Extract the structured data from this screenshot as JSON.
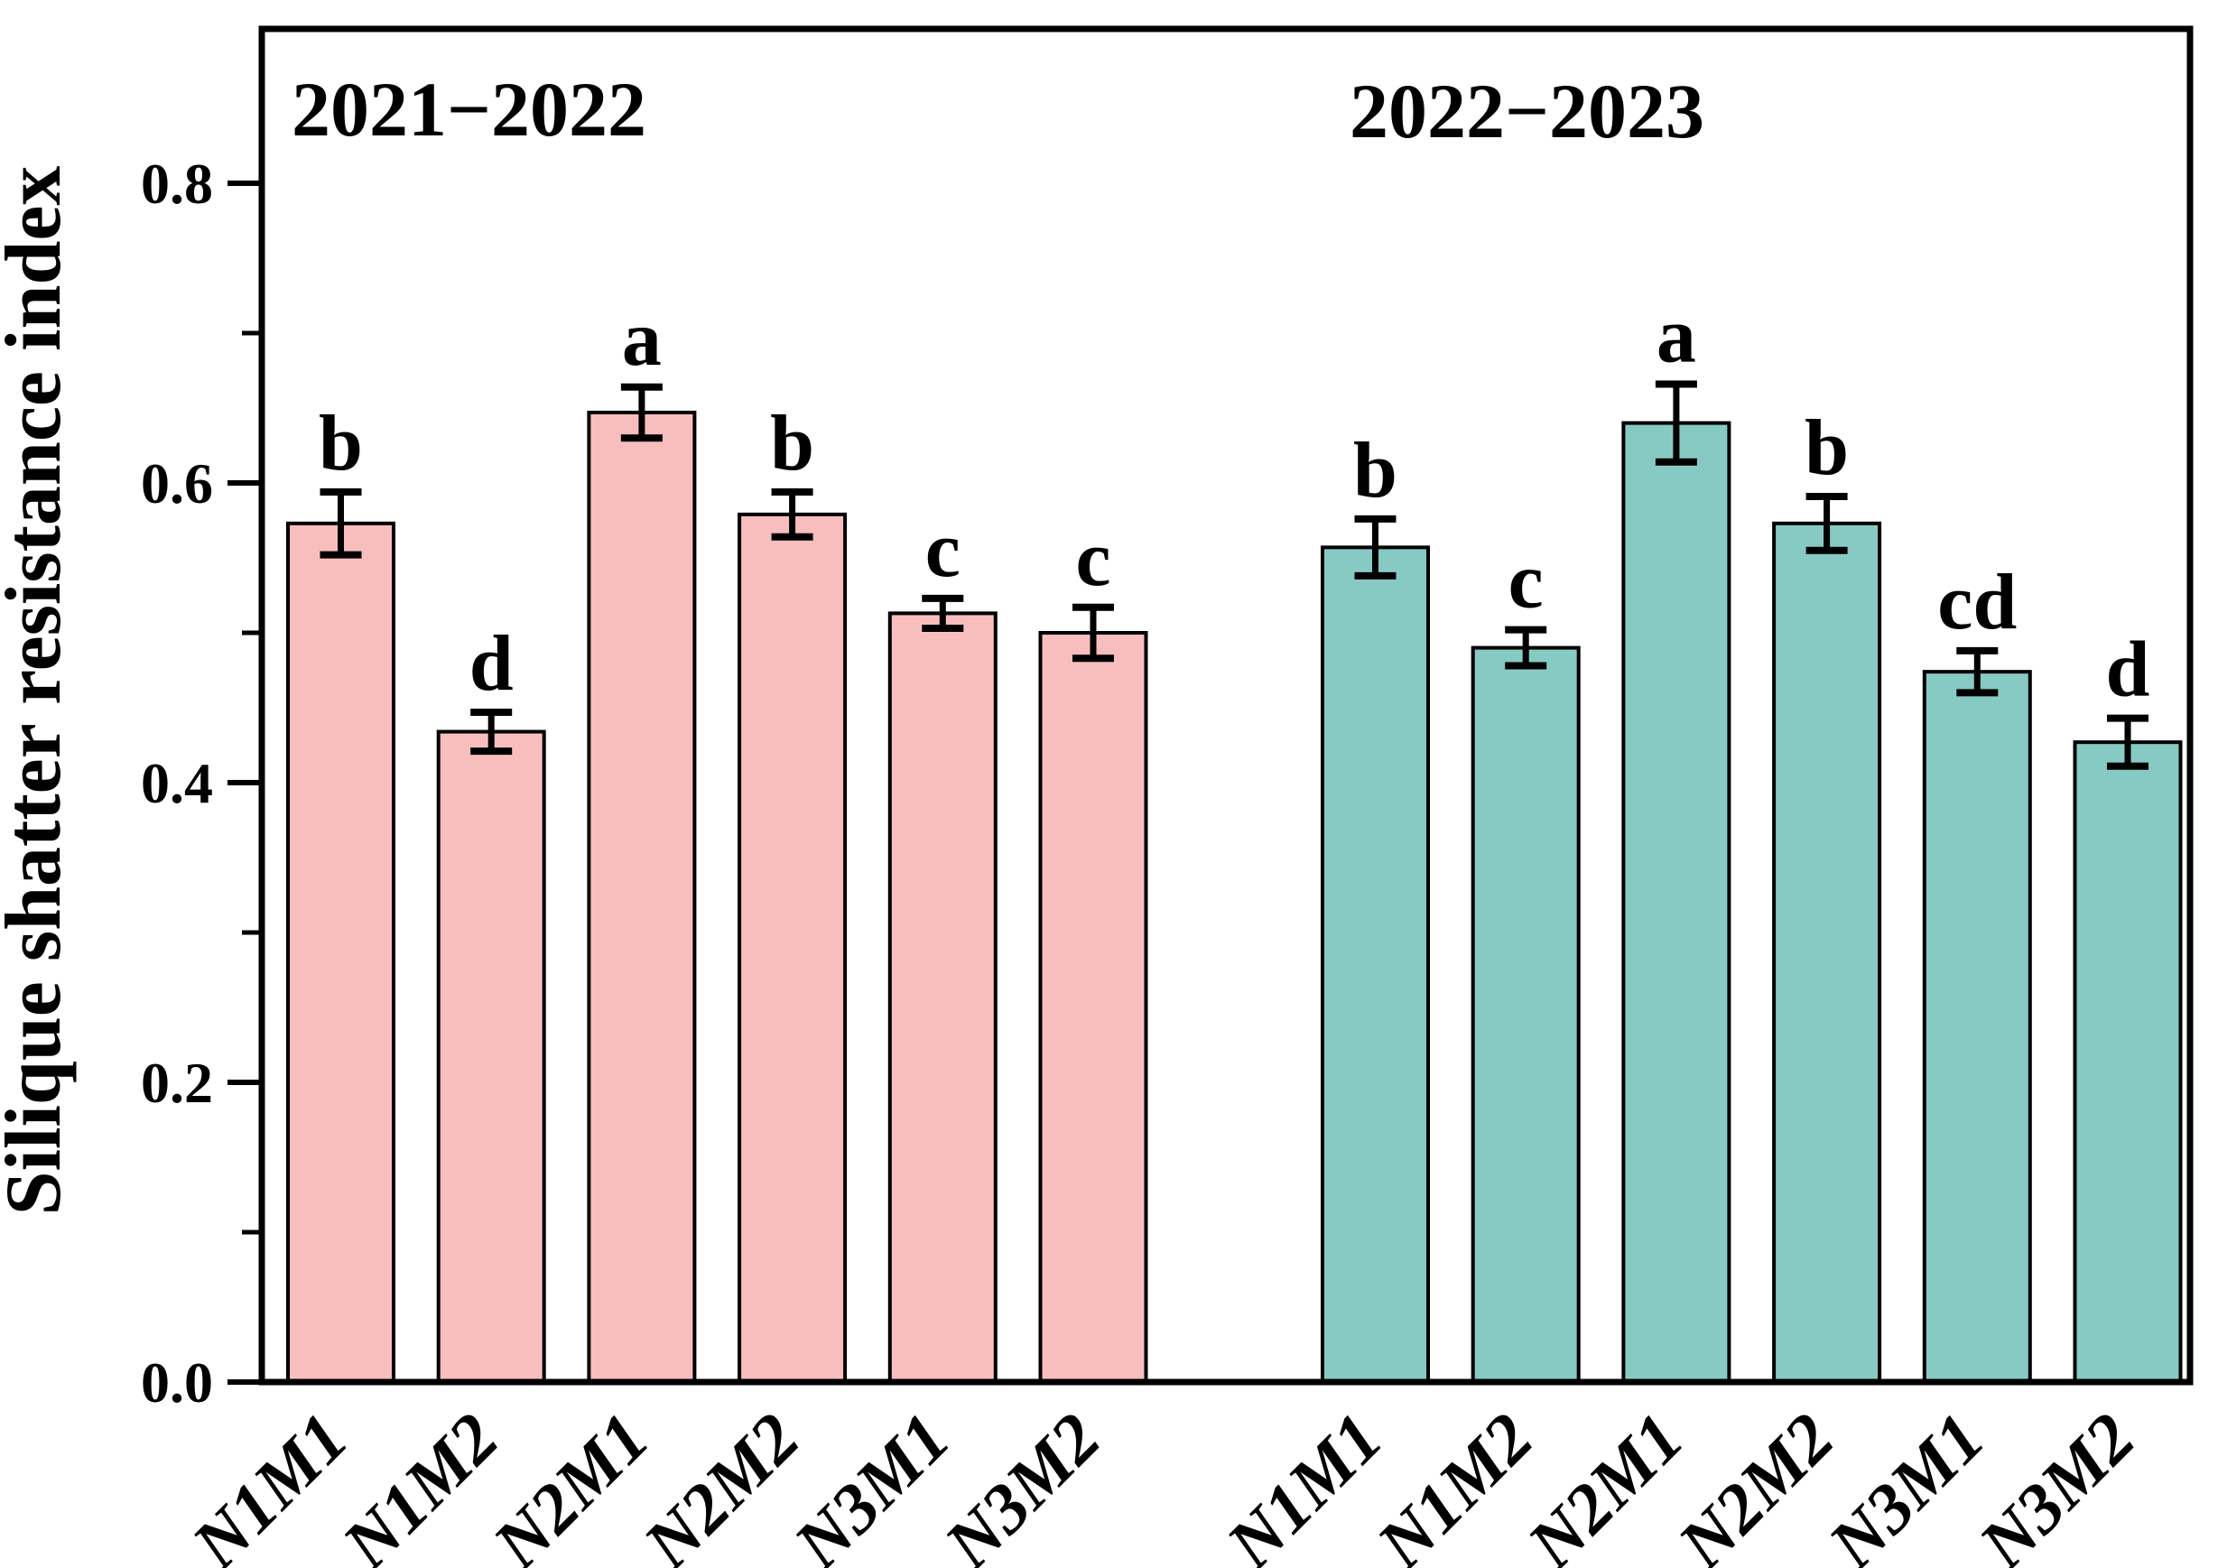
{
  "figure_title": "Silique shatter resistance bar chart",
  "chart_data": {
    "type": "bar",
    "title": "",
    "xlabel": "",
    "ylabel": "Silique shatter resistance index",
    "ylim": [
      0,
      0.9
    ],
    "grid": false,
    "legend_position": "none",
    "background_color": "#FFFFFF",
    "axis_color": "#000000",
    "error_bar_color": "#000000",
    "ytick_labels": [
      "0.0",
      "0.2",
      "0.4",
      "0.6",
      "0.8"
    ],
    "ytick_values": [
      0,
      0.2,
      0.4,
      0.6,
      0.8
    ],
    "minor_ytick_values": [
      0.1,
      0.3,
      0.5,
      0.7
    ],
    "categories": [
      "N1M1",
      "N1M2",
      "N2M1",
      "N2M2",
      "N3M1",
      "N3M2"
    ],
    "series": [
      {
        "name": "2021−2022",
        "color": "#F8BEBD",
        "bar_edge_color": "#000000",
        "values": [
          0.573,
          0.434,
          0.647,
          0.579,
          0.513,
          0.5
        ],
        "errors": [
          0.021,
          0.013,
          0.017,
          0.015,
          0.01,
          0.017
        ],
        "letters": [
          "b",
          "d",
          "a",
          "b",
          "c",
          "c"
        ]
      },
      {
        "name": "2022−2023",
        "color": "#87CAC4",
        "bar_edge_color": "#000000",
        "values": [
          0.557,
          0.49,
          0.64,
          0.573,
          0.474,
          0.427
        ],
        "errors": [
          0.019,
          0.012,
          0.026,
          0.018,
          0.014,
          0.016
        ],
        "letters": [
          "b",
          "c",
          "a",
          "b",
          "cd",
          "d"
        ]
      }
    ]
  }
}
